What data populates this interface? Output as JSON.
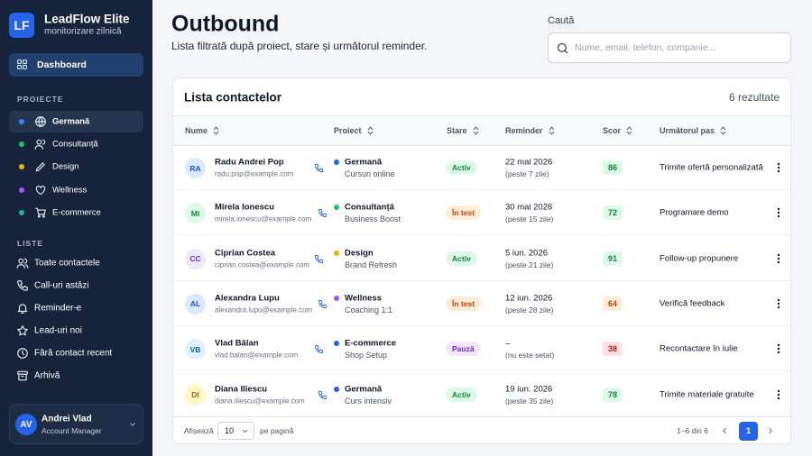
{
  "sidebar": {
    "logo": "LF",
    "app_name": "LeadFlow Elite",
    "app_subtitle": "monitorizare zilnică",
    "nav": [
      "Dashboard"
    ],
    "projects_heading": "PROIECTE",
    "projects": [
      {
        "label": "Germană",
        "color": "#3b82f6"
      },
      {
        "label": "Consultanță",
        "color": "#22c55e"
      },
      {
        "label": "Design",
        "color": "#eab308"
      },
      {
        "label": "Wellness",
        "color": "#a855f7"
      },
      {
        "label": "E-commerce",
        "color": "#14b8a6"
      }
    ],
    "lists_heading": "LISTE",
    "lists": [
      "Toate contactele",
      "Call-uri astăzi",
      "Reminder-e",
      "Lead-uri noi",
      "Fără contact recent",
      "Arhivă"
    ],
    "user": {
      "initials": "AV",
      "name": "Andrei Vlad",
      "role": "Account Manager"
    }
  },
  "header": {
    "title": "Outbound",
    "subtitle": "Lista filtrată după proiect, stare și următorul reminder.",
    "search_label": "Caută",
    "search_placeholder": "Nume, email, telefon, companie..."
  },
  "table": {
    "title": "Lista contactelor",
    "result_count": "6 rezultate",
    "columns": [
      "Nume",
      "Proiect",
      "Stare",
      "Reminder",
      "Scor",
      "Următorul pas"
    ],
    "rows": [
      {
        "initials": "RA",
        "avatar_color": "#dbeafe",
        "avatar_text": "#1d4ed8",
        "name": "Radu Andrei Pop",
        "email": "radu.pop@example.com",
        "project": "Germană",
        "project_detail": "Cursuri online",
        "project_color": "#2563eb",
        "status": "Activ",
        "status_color": "#dcfce7",
        "status_text": "#15803d",
        "reminder": "22 mai 2026",
        "reminder_note": "(peste 7 zile)",
        "score": 86,
        "score_color": "#dcfce7",
        "score_text": "#15803d",
        "next_step": "Trimite ofertă personalizată"
      },
      {
        "initials": "MI",
        "avatar_color": "#dcfce7",
        "avatar_text": "#15803d",
        "name": "Mirela Ionescu",
        "email": "mirela.ionescu@example.com",
        "project": "Consultanță",
        "project_detail": "Business Boost",
        "project_color": "#22c55e",
        "status": "În test",
        "status_color": "#ffedd5",
        "status_text": "#c2410c",
        "reminder": "30 mai 2026",
        "reminder_note": "(peste 15 zile)",
        "score": 72,
        "score_color": "#dcfce7",
        "score_text": "#15803d",
        "next_step": "Programare demo"
      },
      {
        "initials": "CC",
        "avatar_color": "#ede9fe",
        "avatar_text": "#6d28d9",
        "name": "Ciprian Costea",
        "email": "ciprian.costea@example.com",
        "project": "Design",
        "project_detail": "Brand Refresh",
        "project_color": "#eab308",
        "status": "Activ",
        "status_color": "#dcfce7",
        "status_text": "#15803d",
        "reminder": "5 iun. 2026",
        "reminder_note": "(peste 21 zile)",
        "score": 91,
        "score_color": "#dcfce7",
        "score_text": "#15803d",
        "next_step": "Follow-up propunere"
      },
      {
        "initials": "AL",
        "avatar_color": "#dbeafe",
        "avatar_text": "#1d4ed8",
        "name": "Alexandra Lupu",
        "email": "alexandra.lupu@example.com",
        "project": "Wellness",
        "project_detail": "Coaching 1:1",
        "project_color": "#a855f7",
        "status": "În test",
        "status_color": "#ffedd5",
        "status_text": "#c2410c",
        "reminder": "12 iun. 2026",
        "reminder_note": "(peste 28 zile)",
        "score": 64,
        "score_color": "#ffedd5",
        "score_text": "#c2410c",
        "next_step": "Verifică feedback"
      },
      {
        "initials": "VB",
        "avatar_color": "#e0f2fe",
        "avatar_text": "#0369a1",
        "name": "Vlad Bălan",
        "email": "vlad.balan@example.com",
        "project": "E-commerce",
        "project_detail": "Shop Setup",
        "project_color": "#2563eb",
        "status": "Pauză",
        "status_color": "#f3e8ff",
        "status_text": "#7e22ce",
        "reminder": "–",
        "reminder_note": "(nu este setat)",
        "score": 38,
        "score_color": "#fee2e2",
        "score_text": "#b91c1c",
        "next_step": "Recontactare în iulie"
      },
      {
        "initials": "DI",
        "avatar_color": "#fef9c3",
        "avatar_text": "#a16207",
        "name": "Diana Iliescu",
        "email": "diana.iliescu@example.com",
        "project": "Germană",
        "project_detail": "Curs intensiv",
        "project_color": "#2563eb",
        "status": "Activ",
        "status_color": "#dcfce7",
        "status_text": "#15803d",
        "reminder": "19 iun. 2026",
        "reminder_note": "(peste 35 zile)",
        "score": 78,
        "score_color": "#dcfce7",
        "score_text": "#15803d",
        "next_step": "Trimite materiale gratuite"
      }
    ]
  },
  "footer": {
    "show_label": "Afișează",
    "page_size": "10",
    "per_page_label": "pe pagină",
    "range": "1–6 din 6",
    "current_page": "1"
  }
}
